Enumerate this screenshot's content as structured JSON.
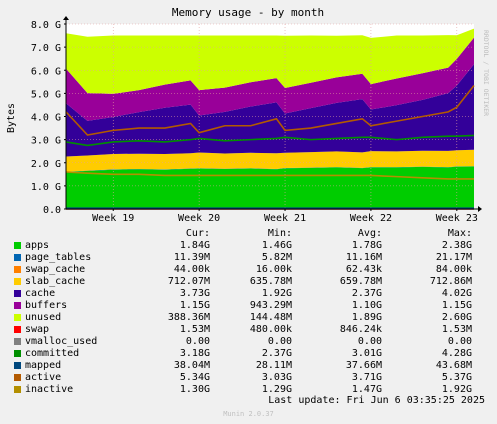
{
  "chart_data": {
    "type": "area",
    "title": "Memory usage - by month",
    "ylabel": "Bytes",
    "watermark": "RRDTOOL / TOBI OETIKER",
    "ylim": [
      0,
      8.0
    ],
    "y_unit": "G",
    "y_ticks": [
      "0.0",
      "1.0 G",
      "2.0 G",
      "3.0 G",
      "4.0 G",
      "5.0 G",
      "6.0 G",
      "7.0 G",
      "8.0 G"
    ],
    "x_ticks": [
      "Week 19",
      "Week 20",
      "Week 21",
      "Week 22",
      "Week 23"
    ],
    "x_tick_positions": [
      1.0,
      2.0,
      3.0,
      4.0,
      5.0
    ],
    "xlim": [
      0.45,
      5.2
    ],
    "x": [
      0.45,
      0.7,
      1.0,
      1.3,
      1.6,
      1.9,
      2.0,
      2.3,
      2.6,
      2.9,
      3.0,
      3.3,
      3.6,
      3.9,
      4.0,
      4.3,
      4.6,
      4.9,
      5.0,
      5.2
    ],
    "stack_order": [
      "apps",
      "page_tables",
      "swap_cache",
      "slab_cache",
      "cache",
      "buffers",
      "unused"
    ],
    "series": [
      {
        "name": "apps",
        "color": "#00cc00",
        "values": [
          1.6,
          1.65,
          1.7,
          1.72,
          1.7,
          1.74,
          1.75,
          1.73,
          1.75,
          1.72,
          1.76,
          1.78,
          1.8,
          1.77,
          1.8,
          1.8,
          1.82,
          1.8,
          1.83,
          1.84
        ]
      },
      {
        "name": "page_tables",
        "color": "#0066b3",
        "values": [
          0.011,
          0.011,
          0.011,
          0.011,
          0.011,
          0.011,
          0.011,
          0.011,
          0.011,
          0.011,
          0.011,
          0.011,
          0.011,
          0.011,
          0.011,
          0.011,
          0.011,
          0.011,
          0.011,
          0.011
        ]
      },
      {
        "name": "swap_cache",
        "color": "#ff8000",
        "values": [
          0.0,
          0.0,
          0.0,
          0.0,
          0.0,
          0.0,
          0.0,
          0.0,
          0.0,
          0.0,
          0.0,
          0.0,
          0.0,
          0.0,
          0.0,
          0.0,
          0.0,
          0.0,
          0.0,
          0.0
        ]
      },
      {
        "name": "slab_cache",
        "color": "#ffcc00",
        "values": [
          0.66,
          0.65,
          0.67,
          0.66,
          0.67,
          0.66,
          0.68,
          0.66,
          0.67,
          0.68,
          0.66,
          0.67,
          0.68,
          0.67,
          0.69,
          0.68,
          0.69,
          0.7,
          0.7,
          0.71
        ]
      },
      {
        "name": "cache",
        "color": "#330099",
        "values": [
          2.3,
          1.5,
          1.6,
          1.8,
          2.0,
          2.1,
          1.6,
          1.8,
          2.0,
          2.2,
          1.7,
          1.9,
          2.1,
          2.3,
          1.8,
          2.0,
          2.2,
          2.5,
          2.8,
          3.7
        ]
      },
      {
        "name": "buffers",
        "color": "#990099",
        "values": [
          1.5,
          1.2,
          1.0,
          0.95,
          1.0,
          1.05,
          1.1,
          1.05,
          1.05,
          1.05,
          1.1,
          1.1,
          1.1,
          1.1,
          1.1,
          1.15,
          1.15,
          1.1,
          1.15,
          1.15
        ]
      },
      {
        "name": "unused",
        "color": "#ccff00",
        "values": [
          1.53,
          2.44,
          2.52,
          2.36,
          2.12,
          1.94,
          2.36,
          2.25,
          2.02,
          1.84,
          2.26,
          2.04,
          1.8,
          1.66,
          2.0,
          1.86,
          1.63,
          1.41,
          1.02,
          0.39
        ]
      }
    ],
    "lines": [
      {
        "name": "swap",
        "color": "#ff0000",
        "values": [
          0.0015,
          0.0015,
          0.0015,
          0.0015,
          0.0015,
          0.0015,
          0.0015,
          0.0015,
          0.0015,
          0.0015,
          0.0015,
          0.0015,
          0.0015,
          0.0015,
          0.0015,
          0.0015,
          0.0015,
          0.0015,
          0.0015,
          0.0015
        ]
      },
      {
        "name": "vmalloc_used",
        "color": "#808080",
        "values": [
          0,
          0,
          0,
          0,
          0,
          0,
          0,
          0,
          0,
          0,
          0,
          0,
          0,
          0,
          0,
          0,
          0,
          0,
          0,
          0
        ]
      },
      {
        "name": "committed",
        "color": "#008f00",
        "values": [
          2.9,
          2.75,
          2.9,
          2.95,
          2.9,
          3.0,
          3.05,
          2.95,
          3.0,
          3.05,
          3.1,
          3.0,
          3.05,
          3.1,
          3.1,
          3.0,
          3.1,
          3.15,
          3.15,
          3.18
        ]
      },
      {
        "name": "mapped",
        "color": "#00487d",
        "values": [
          0.038,
          0.038,
          0.038,
          0.038,
          0.038,
          0.038,
          0.038,
          0.038,
          0.038,
          0.038,
          0.038,
          0.038,
          0.038,
          0.038,
          0.038,
          0.038,
          0.038,
          0.038,
          0.038,
          0.038
        ]
      },
      {
        "name": "active",
        "color": "#b35a00",
        "values": [
          4.2,
          3.2,
          3.4,
          3.5,
          3.5,
          3.7,
          3.3,
          3.6,
          3.6,
          3.9,
          3.4,
          3.5,
          3.7,
          3.9,
          3.6,
          3.8,
          4.0,
          4.2,
          4.4,
          5.34
        ]
      },
      {
        "name": "inactive",
        "color": "#b38f00",
        "values": [
          1.6,
          1.55,
          1.5,
          1.5,
          1.45,
          1.45,
          1.45,
          1.45,
          1.45,
          1.45,
          1.45,
          1.45,
          1.45,
          1.45,
          1.45,
          1.4,
          1.35,
          1.3,
          1.3,
          1.3
        ]
      }
    ]
  },
  "legend": {
    "headers": {
      "cur": "Cur:",
      "min": "Min:",
      "avg": "Avg:",
      "max": "Max:"
    },
    "rows": [
      {
        "name": "apps",
        "color": "#00cc00",
        "cur": "1.84G",
        "min": "1.46G",
        "avg": "1.78G",
        "max": "2.38G"
      },
      {
        "name": "page_tables",
        "color": "#0066b3",
        "cur": "11.39M",
        "min": "5.82M",
        "avg": "11.16M",
        "max": "21.17M"
      },
      {
        "name": "swap_cache",
        "color": "#ff8000",
        "cur": "44.00k",
        "min": "16.00k",
        "avg": "62.43k",
        "max": "84.00k"
      },
      {
        "name": "slab_cache",
        "color": "#ffcc00",
        "cur": "712.07M",
        "min": "635.78M",
        "avg": "659.78M",
        "max": "712.86M"
      },
      {
        "name": "cache",
        "color": "#330099",
        "cur": "3.73G",
        "min": "1.92G",
        "avg": "2.37G",
        "max": "4.02G"
      },
      {
        "name": "buffers",
        "color": "#990099",
        "cur": "1.15G",
        "min": "943.29M",
        "avg": "1.10G",
        "max": "1.15G"
      },
      {
        "name": "unused",
        "color": "#ccff00",
        "cur": "388.36M",
        "min": "144.48M",
        "avg": "1.89G",
        "max": "2.60G"
      },
      {
        "name": "swap",
        "color": "#ff0000",
        "cur": "1.53M",
        "min": "480.00k",
        "avg": "846.24k",
        "max": "1.53M"
      },
      {
        "name": "vmalloc_used",
        "color": "#808080",
        "cur": "0.00",
        "min": "0.00",
        "avg": "0.00",
        "max": "0.00"
      },
      {
        "name": "committed",
        "color": "#008f00",
        "cur": "3.18G",
        "min": "2.37G",
        "avg": "3.01G",
        "max": "4.28G"
      },
      {
        "name": "mapped",
        "color": "#00487d",
        "cur": "38.04M",
        "min": "28.11M",
        "avg": "37.66M",
        "max": "43.68M"
      },
      {
        "name": "active",
        "color": "#b35a00",
        "cur": "5.34G",
        "min": "3.03G",
        "avg": "3.71G",
        "max": "5.37G"
      },
      {
        "name": "inactive",
        "color": "#b38f00",
        "cur": "1.30G",
        "min": "1.29G",
        "avg": "1.47G",
        "max": "1.92G"
      }
    ]
  },
  "footer": {
    "last_update": "Last update: Fri Jun  6 03:35:25 2025",
    "generator": "Munin 2.0.37"
  }
}
